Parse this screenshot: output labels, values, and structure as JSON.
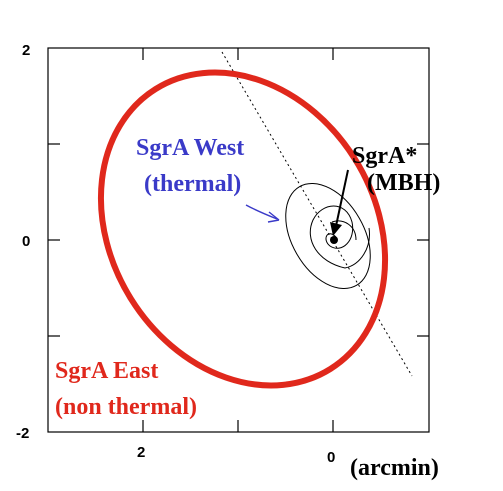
{
  "axes": {
    "y_ticks": [
      "2",
      "0",
      "-2"
    ],
    "x_ticks": [
      "2",
      "0"
    ],
    "x_unit": "(arcmin)"
  },
  "labels": {
    "sgra_west": "SgrA West",
    "sgra_west_type": "(thermal)",
    "sgra_star": "SgrA*",
    "sgra_star_type": "(MBH)",
    "sgra_east": "SgrA East",
    "sgra_east_type": "(non thermal)"
  },
  "colors": {
    "east": "#e0281c",
    "west": "#3a3ac8",
    "frame": "#000000"
  }
}
